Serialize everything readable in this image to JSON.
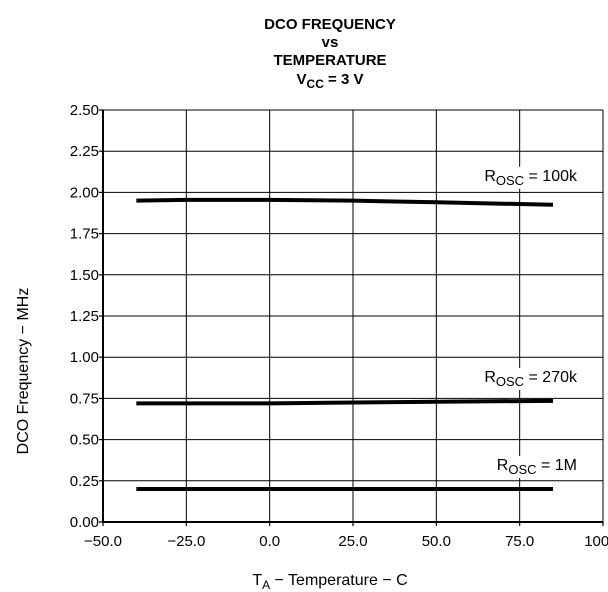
{
  "chart_data": {
    "type": "line",
    "title": {
      "line1": "DCO FREQUENCY",
      "line2": "vs",
      "line3": "TEMPERATURE",
      "line4_main": "V",
      "line4_sub": "CC",
      "line4_rest": " = 3 V"
    },
    "xlabel": {
      "main": "T",
      "sub": "A",
      "rest": " − Temperature −   C"
    },
    "ylabel": "DCO Frequency − MHz",
    "xlim": [
      -50,
      100
    ],
    "ylim": [
      0,
      2.5
    ],
    "x_ticks": [
      "−50.0",
      "−25.0",
      "0.0",
      "25.0",
      "50.0",
      "75.0",
      "100.0"
    ],
    "x_tick_values": [
      -50,
      -25,
      0,
      25,
      50,
      75,
      100
    ],
    "y_ticks": [
      "0.00",
      "0.25",
      "0.50",
      "0.75",
      "1.00",
      "1.25",
      "1.50",
      "1.75",
      "2.00",
      "2.25",
      "2.50"
    ],
    "y_tick_values": [
      0,
      0.25,
      0.5,
      0.75,
      1.0,
      1.25,
      1.5,
      1.75,
      2.0,
      2.25,
      2.5
    ],
    "grid": true,
    "series": [
      {
        "label_main": "R",
        "label_sub": "OSC",
        "label_rest": " = 100k",
        "x": [
          -40,
          -25,
          0,
          25,
          50,
          85
        ],
        "y": [
          1.95,
          1.955,
          1.955,
          1.95,
          1.94,
          1.925
        ]
      },
      {
        "label_main": "R",
        "label_sub": "OSC",
        "label_rest": " = 270k",
        "x": [
          -40,
          -25,
          0,
          25,
          50,
          85
        ],
        "y": [
          0.72,
          0.72,
          0.72,
          0.725,
          0.73,
          0.735
        ]
      },
      {
        "label_main": "R",
        "label_sub": "OSC",
        "label_rest": " = 1M",
        "x": [
          -40,
          -25,
          0,
          25,
          50,
          85
        ],
        "y": [
          0.2,
          0.2,
          0.2,
          0.2,
          0.2,
          0.2
        ]
      }
    ],
    "colors": {
      "line": "#000000",
      "grid": "#000000",
      "background": "#ffffff"
    }
  }
}
